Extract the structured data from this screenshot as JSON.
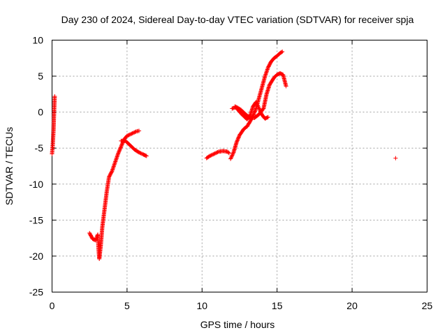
{
  "chart_data": {
    "type": "scatter",
    "title": "Day 230 of 2024, Sidereal Day-to-day VTEC variation (SDTVAR) for receiver spja",
    "xlabel": "GPS time / hours",
    "ylabel": "SDTVAR / TECUs",
    "xlim": [
      0,
      25
    ],
    "ylim": [
      -25,
      10
    ],
    "xticks": [
      "0",
      "5",
      "10",
      "15",
      "20",
      "25"
    ],
    "yticks": [
      "10",
      "5",
      "0",
      "-5",
      "-10",
      "-15",
      "-20",
      "-25"
    ],
    "grid": true,
    "marker": "plus",
    "color": "#ff0000",
    "series": [
      {
        "segments": [
          [
            [
              0.0,
              -5.8
            ],
            [
              0.05,
              -4.5
            ],
            [
              0.1,
              -2.5
            ],
            [
              0.13,
              -0.5
            ],
            [
              0.16,
              1.2
            ],
            [
              0.18,
              2.2
            ]
          ],
          [
            [
              2.5,
              -16.8
            ],
            [
              2.7,
              -17.6
            ],
            [
              2.9,
              -17.8
            ],
            [
              3.05,
              -17.0
            ],
            [
              3.1,
              -19.0
            ],
            [
              3.15,
              -20.4
            ],
            [
              3.25,
              -18.5
            ],
            [
              3.35,
              -16.0
            ],
            [
              3.5,
              -13.5
            ],
            [
              3.65,
              -11.0
            ],
            [
              3.8,
              -9.0
            ],
            [
              4.0,
              -8.2
            ],
            [
              4.2,
              -7.0
            ],
            [
              4.4,
              -5.8
            ],
            [
              4.6,
              -4.8
            ],
            [
              4.8,
              -3.8
            ],
            [
              5.0,
              -3.3
            ],
            [
              5.3,
              -3.0
            ],
            [
              5.6,
              -2.7
            ],
            [
              5.8,
              -2.6
            ]
          ],
          [
            [
              4.6,
              -4.0
            ],
            [
              4.9,
              -4.0
            ],
            [
              5.2,
              -4.6
            ],
            [
              5.5,
              -5.2
            ],
            [
              5.8,
              -5.6
            ],
            [
              6.1,
              -5.9
            ],
            [
              6.3,
              -6.1
            ]
          ],
          [
            [
              10.3,
              -6.4
            ],
            [
              10.5,
              -6.1
            ],
            [
              10.8,
              -5.8
            ],
            [
              11.1,
              -5.5
            ],
            [
              11.4,
              -5.4
            ],
            [
              11.7,
              -5.5
            ],
            [
              11.8,
              -5.7
            ]
          ],
          [
            [
              11.9,
              -6.5
            ],
            [
              12.1,
              -5.6
            ],
            [
              12.3,
              -4.2
            ],
            [
              12.5,
              -3.2
            ],
            [
              12.8,
              -2.3
            ],
            [
              13.0,
              -2.0
            ],
            [
              13.2,
              -1.3
            ],
            [
              13.4,
              -0.5
            ],
            [
              13.6,
              0.5
            ],
            [
              13.8,
              2.0
            ],
            [
              14.0,
              3.5
            ],
            [
              14.2,
              5.0
            ],
            [
              14.4,
              6.2
            ],
            [
              14.6,
              7.0
            ],
            [
              14.8,
              7.5
            ],
            [
              15.0,
              7.8
            ],
            [
              15.2,
              8.2
            ],
            [
              15.35,
              8.4
            ]
          ],
          [
            [
              12.0,
              0.5
            ],
            [
              12.3,
              0.7
            ],
            [
              12.6,
              0.3
            ],
            [
              12.9,
              -0.3
            ],
            [
              13.2,
              -0.8
            ],
            [
              13.5,
              -0.8
            ],
            [
              13.8,
              -0.3
            ],
            [
              14.1,
              0.5
            ],
            [
              14.3,
              2.5
            ],
            [
              14.5,
              3.8
            ],
            [
              14.8,
              4.8
            ],
            [
              15.0,
              5.2
            ],
            [
              15.2,
              5.4
            ],
            [
              15.4,
              5.2
            ],
            [
              15.5,
              4.4
            ],
            [
              15.6,
              3.6
            ]
          ],
          [
            [
              12.2,
              0.8
            ],
            [
              12.6,
              -0.2
            ],
            [
              13.0,
              -1.0
            ],
            [
              13.2,
              -0.5
            ],
            [
              13.4,
              0.8
            ],
            [
              13.6,
              1.4
            ],
            [
              13.8,
              0.5
            ],
            [
              14.0,
              -0.4
            ],
            [
              14.2,
              -0.9
            ],
            [
              14.4,
              -0.7
            ]
          ]
        ],
        "singles": [
          [
            22.9,
            -6.4
          ]
        ]
      }
    ]
  }
}
